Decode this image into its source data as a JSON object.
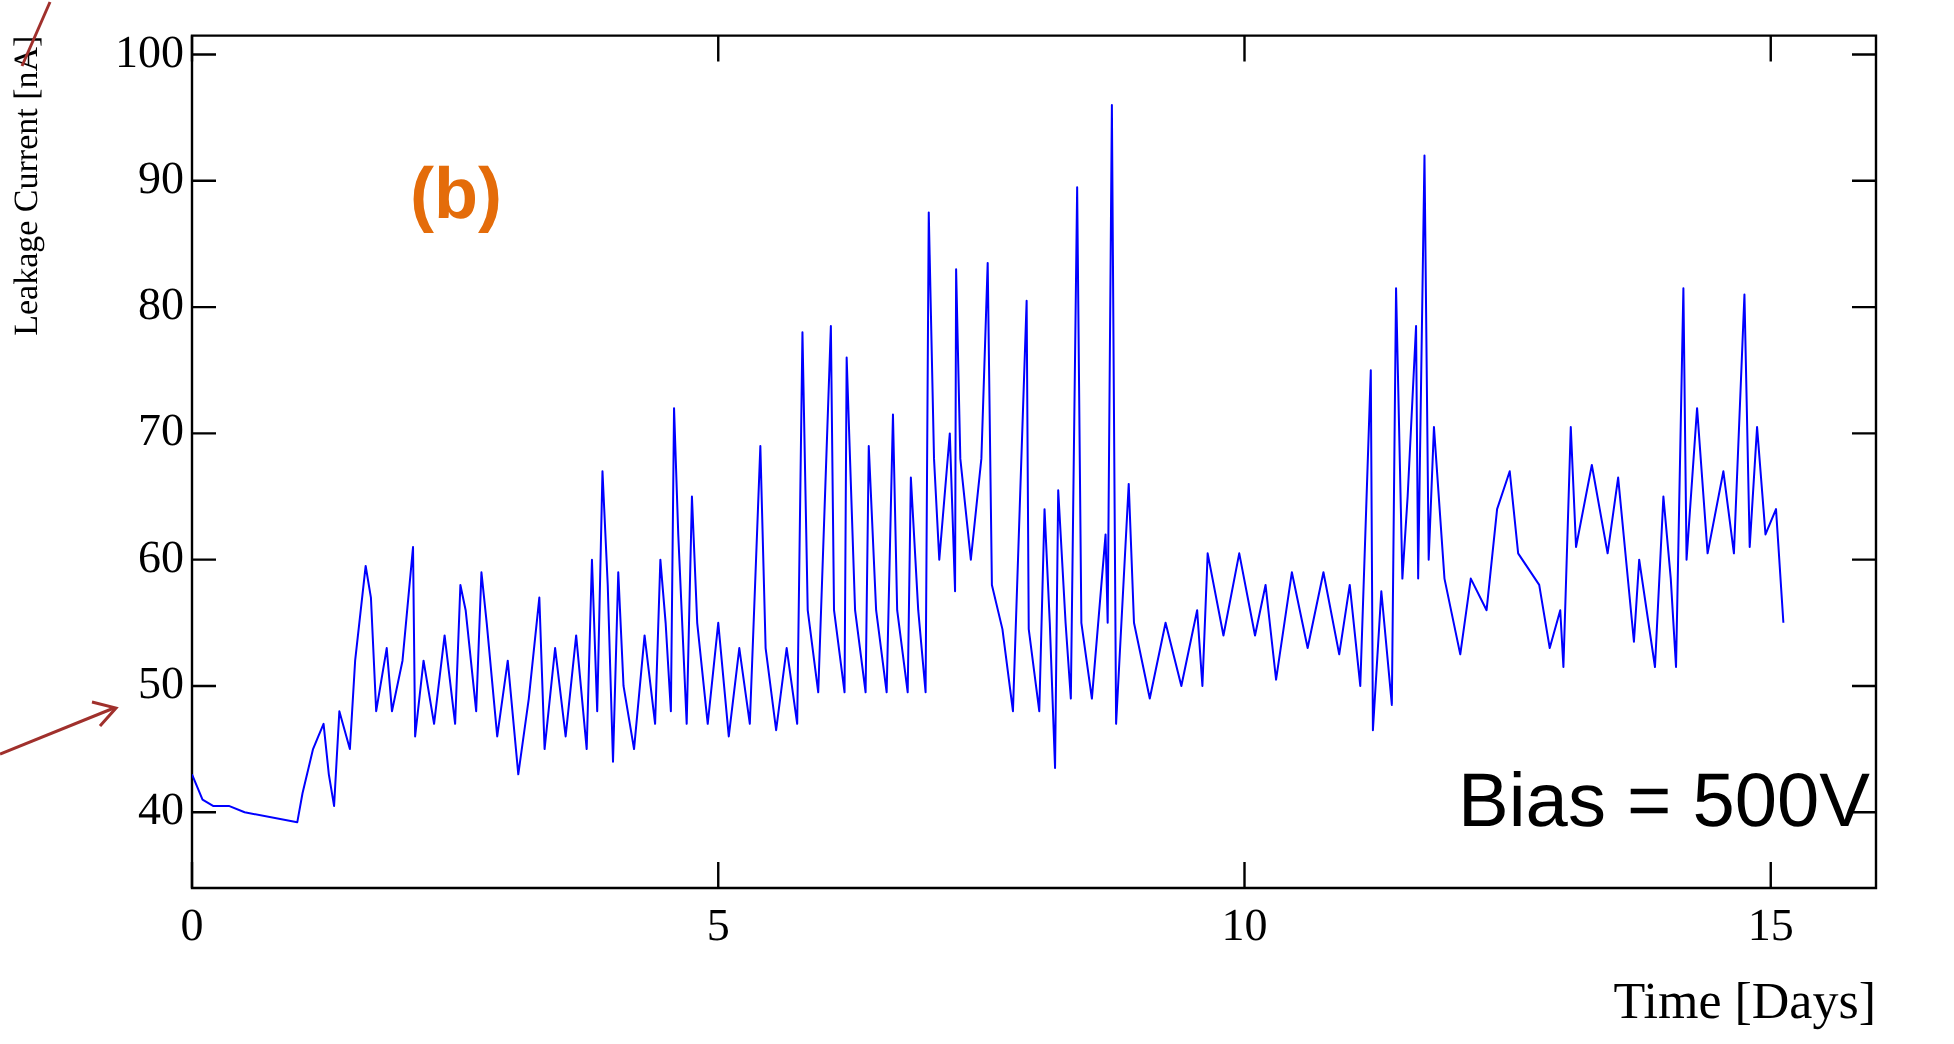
{
  "chart_data": {
    "type": "line",
    "xlabel": "Time [Days]",
    "ylabel": "Leakage Current [nA]",
    "xlim": [
      0,
      16
    ],
    "ylim": [
      34,
      101.5
    ],
    "xticks": [
      0,
      5,
      10,
      15
    ],
    "yticks": [
      40,
      50,
      60,
      70,
      80,
      90,
      100
    ],
    "grid": false,
    "legend": false,
    "marker": "none",
    "line_style": "solid",
    "annotations": [
      "(b)",
      "Bias = 500V"
    ],
    "series": [
      {
        "color": "#0000ff",
        "x": [
          0,
          0.1,
          0.2,
          0.35,
          0.5,
          1.0,
          1.05,
          1.15,
          1.2,
          1.25,
          1.3,
          1.35,
          1.4,
          1.5,
          1.55,
          1.65,
          1.7,
          1.75,
          1.85,
          1.9,
          2.0,
          2.1,
          2.12,
          2.2,
          2.3,
          2.4,
          2.5,
          2.55,
          2.6,
          2.7,
          2.75,
          2.8,
          2.9,
          3.0,
          3.1,
          3.2,
          3.3,
          3.35,
          3.45,
          3.55,
          3.65,
          3.75,
          3.8,
          3.85,
          3.9,
          3.95,
          4.0,
          4.05,
          4.1,
          4.2,
          4.3,
          4.4,
          4.45,
          4.5,
          4.55,
          4.58,
          4.62,
          4.7,
          4.75,
          4.8,
          4.9,
          5.0,
          5.1,
          5.2,
          5.3,
          5.4,
          5.45,
          5.55,
          5.65,
          5.75,
          5.8,
          5.85,
          5.95,
          6.07,
          6.1,
          6.2,
          6.22,
          6.3,
          6.4,
          6.43,
          6.5,
          6.6,
          6.66,
          6.7,
          6.8,
          6.83,
          6.9,
          6.97,
          7.0,
          7.05,
          7.1,
          7.2,
          7.25,
          7.26,
          7.3,
          7.4,
          7.5,
          7.56,
          7.6,
          7.7,
          7.8,
          7.93,
          7.95,
          8.05,
          8.1,
          8.15,
          8.2,
          8.23,
          8.3,
          8.35,
          8.41,
          8.45,
          8.55,
          8.68,
          8.7,
          8.74,
          8.78,
          8.9,
          8.95,
          9.1,
          9.25,
          9.4,
          9.55,
          9.6,
          9.65,
          9.8,
          9.95,
          10.1,
          10.2,
          10.3,
          10.45,
          10.6,
          10.75,
          10.9,
          11.0,
          11.1,
          11.2,
          11.22,
          11.3,
          11.4,
          11.44,
          11.5,
          11.55,
          11.63,
          11.65,
          11.71,
          11.75,
          11.8,
          11.9,
          12.05,
          12.15,
          12.3,
          12.4,
          12.52,
          12.6,
          12.8,
          12.9,
          13.0,
          13.03,
          13.1,
          13.15,
          13.3,
          13.45,
          13.55,
          13.7,
          13.75,
          13.9,
          13.98,
          14.05,
          14.1,
          14.17,
          14.2,
          14.3,
          14.4,
          14.55,
          14.65,
          14.75,
          14.8,
          14.87,
          14.95,
          15.05,
          15.12
        ],
        "values": [
          43,
          41,
          40.5,
          40.5,
          40,
          39.2,
          41.5,
          45,
          46,
          47,
          43,
          40.5,
          48,
          45,
          52,
          59.5,
          57,
          48,
          53,
          48,
          52,
          61,
          46,
          52,
          47,
          54,
          47,
          58,
          56,
          48,
          59,
          55,
          46,
          52,
          43,
          49,
          57,
          45,
          53,
          46,
          54,
          45,
          60,
          48,
          67,
          58,
          44,
          59,
          50,
          45,
          54,
          47,
          60,
          55,
          48,
          72,
          62,
          47,
          65,
          55,
          47,
          55,
          46,
          53,
          47,
          69,
          53,
          46.5,
          53,
          47,
          78,
          56,
          49.5,
          78.5,
          56,
          49.5,
          76,
          56,
          49.5,
          69,
          56,
          49.5,
          71.5,
          56,
          49.5,
          66.5,
          56,
          49.5,
          87.5,
          68,
          60,
          70,
          57.5,
          83,
          68,
          60,
          68,
          83.5,
          58,
          54.5,
          48,
          80.5,
          54.5,
          48,
          64,
          55,
          43.5,
          65.5,
          55,
          49,
          89.5,
          55,
          49,
          62,
          55,
          96,
          47,
          66,
          55,
          49,
          55,
          50,
          56,
          50,
          60.5,
          54,
          60.5,
          54,
          58,
          50.5,
          59,
          53,
          59,
          52.5,
          58,
          50,
          75,
          46.5,
          57.5,
          48.5,
          81.5,
          58.5,
          65,
          78.5,
          58.5,
          92,
          60,
          70.5,
          58.5,
          52.5,
          58.5,
          56,
          64,
          67,
          60.5,
          58,
          53,
          56,
          51.5,
          70.5,
          61,
          67.5,
          60.5,
          66.5,
          53.5,
          60,
          51.5,
          65,
          58.5,
          51.5,
          81.5,
          60,
          72,
          60.5,
          67,
          60.5,
          81,
          61,
          70.5,
          62,
          64,
          55
        ]
      }
    ]
  }
}
